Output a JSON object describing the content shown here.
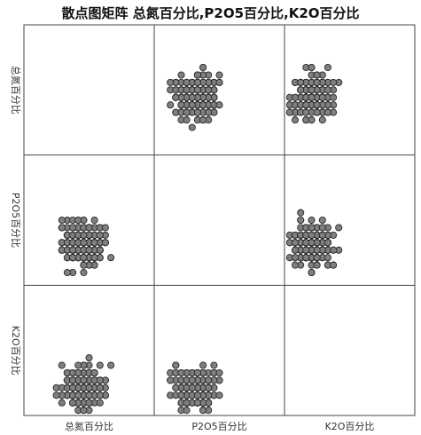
{
  "title": "散点图矩阵 总氮百分比,P2O5百分比,K2O百分比",
  "chart_data": {
    "type": "scatter",
    "title": "散点图矩阵 总氮百分比,P2O5百分比,K2O百分比",
    "variables": [
      "总氮百分比",
      "P2O5百分比",
      "K2O百分比"
    ],
    "grid": false,
    "marker_color": "#7f7f7f",
    "marker_edge_color": "#2a2a2a",
    "note_ranges": "axis ticks not shown; values in relative units (0-1) of each variable's range",
    "pairs": [
      {
        "x": "P2O5百分比",
        "y": "总氮百分比",
        "row": 0,
        "col": 1
      },
      {
        "x": "K2O百分比",
        "y": "总氮百分比",
        "row": 0,
        "col": 2
      },
      {
        "x": "总氮百分比",
        "y": "P2O5百分比",
        "row": 1,
        "col": 0
      },
      {
        "x": "K2O百分比",
        "y": "P2O5百分比",
        "row": 1,
        "col": 2
      },
      {
        "x": "总氮百分比",
        "y": "K2O百分比",
        "row": 2,
        "col": 0
      },
      {
        "x": "P2O5百分比",
        "y": "K2O百分比",
        "row": 2,
        "col": 1
      }
    ]
  }
}
